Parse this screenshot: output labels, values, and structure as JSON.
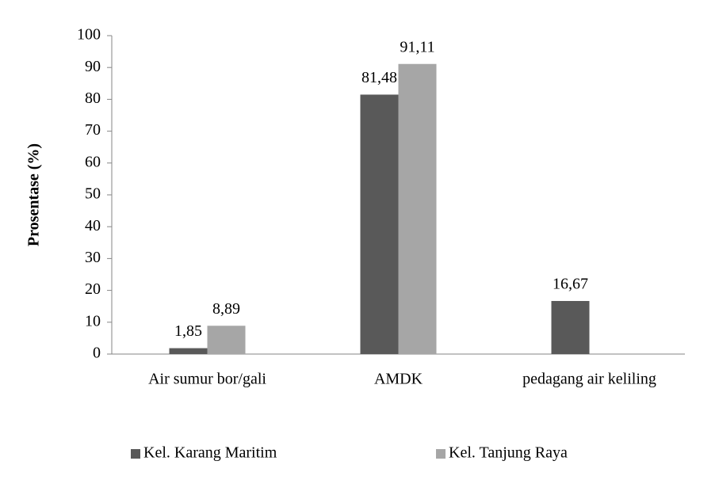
{
  "chart_data": {
    "type": "bar",
    "y_label": "Prosentase (%)",
    "categories": [
      "Air sumur bor/gali",
      "AMDK",
      "pedagang air keliling"
    ],
    "series": [
      {
        "name": "Kel. Karang Maritim",
        "color": "#595959",
        "values": [
          1.85,
          81.48,
          16.67
        ],
        "value_labels": [
          "1,85",
          "81,48",
          "16,67"
        ]
      },
      {
        "name": "Kel. Tanjung Raya",
        "color": "#a6a6a6",
        "values": [
          8.89,
          91.11,
          null
        ],
        "value_labels": [
          "8,89",
          "91,11",
          null
        ]
      }
    ],
    "ylim": [
      0,
      100
    ],
    "yticks": [
      0,
      10,
      20,
      30,
      40,
      50,
      60,
      70,
      80,
      90,
      100
    ],
    "grid": false,
    "legend": "bottom"
  }
}
